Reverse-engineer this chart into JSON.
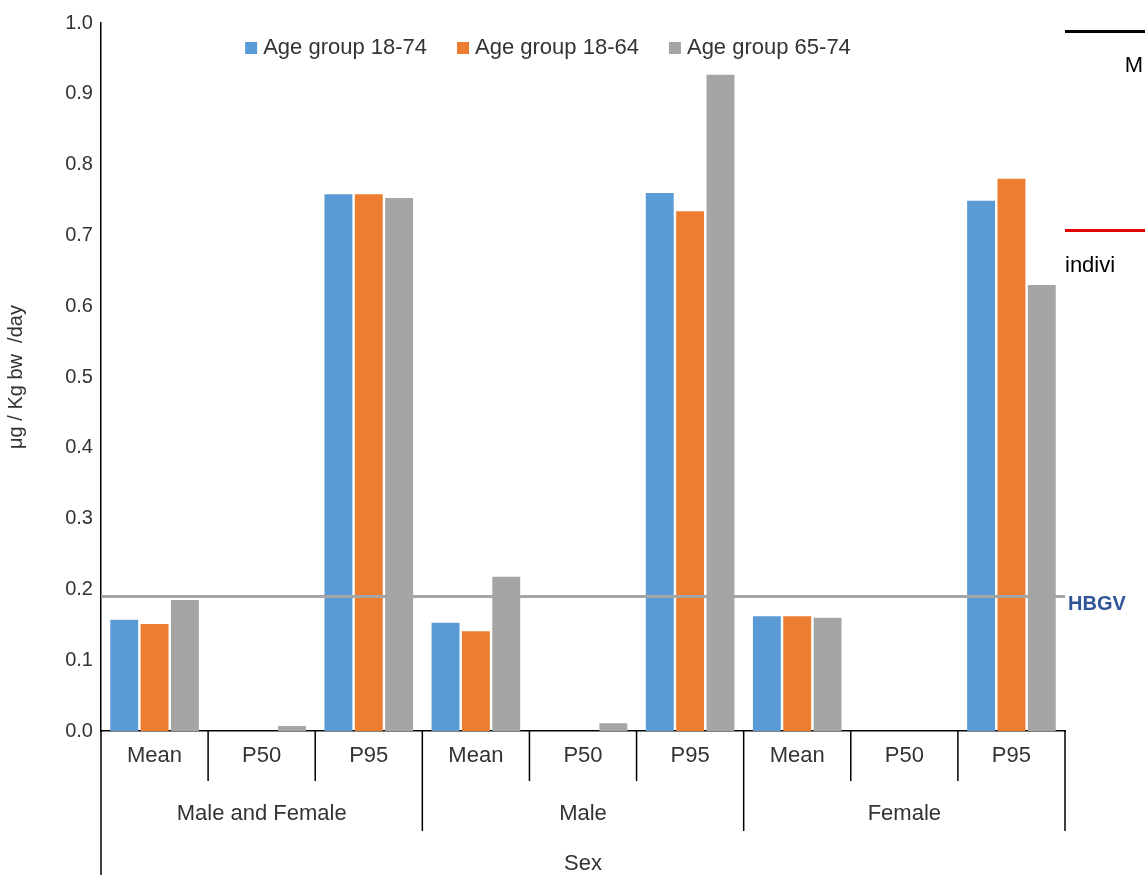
{
  "chart_data": {
    "type": "bar",
    "ylabel": "μg / Kg bw  /day",
    "xlabel": "Sex",
    "categories": [
      "Mean",
      "P50",
      "P95",
      "Mean",
      "P50",
      "P95",
      "Mean",
      "P50",
      "P95"
    ],
    "series": [
      {
        "name": "Age group 18-74",
        "color": "#5b9bd5",
        "values": [
          0.157,
          0,
          0.758,
          0.153,
          0,
          0.76,
          0.162,
          0,
          0.749
        ]
      },
      {
        "name": "Age group 18-64",
        "color": "#ed7d31",
        "values": [
          0.151,
          0,
          0.758,
          0.141,
          0,
          0.734,
          0.162,
          0,
          0.78
        ]
      },
      {
        "name": "Age group 65-74",
        "color": "#a5a5a5",
        "values": [
          0.185,
          0.007,
          0.753,
          0.218,
          0.011,
          0.927,
          0.16,
          0,
          0.63
        ]
      }
    ],
    "ylim": [
      0,
      1
    ],
    "yticks": [
      {
        "value": 0,
        "label": "0.0"
      },
      {
        "value": 0.1,
        "label": "0.1"
      },
      {
        "value": 0.2,
        "label": "0.2"
      },
      {
        "value": 0.3,
        "label": "0.3"
      },
      {
        "value": 0.4,
        "label": "0.4"
      },
      {
        "value": 0.5,
        "label": "0.5"
      },
      {
        "value": 0.6,
        "label": "0.6"
      },
      {
        "value": 0.7,
        "label": "0.7"
      },
      {
        "value": 0.8,
        "label": "0.8"
      },
      {
        "value": 0.9,
        "label": "0.9"
      },
      {
        "value": 1,
        "label": "1.0"
      }
    ],
    "ref_lines": [
      {
        "axis": "y",
        "value": 0.19,
        "label": "HBGV",
        "color": "#a5a5a5"
      }
    ],
    "annotations": [
      "Male and Female",
      "Male",
      "Female",
      "M",
      "indivi"
    ],
    "legend": "top",
    "grid": false
  }
}
